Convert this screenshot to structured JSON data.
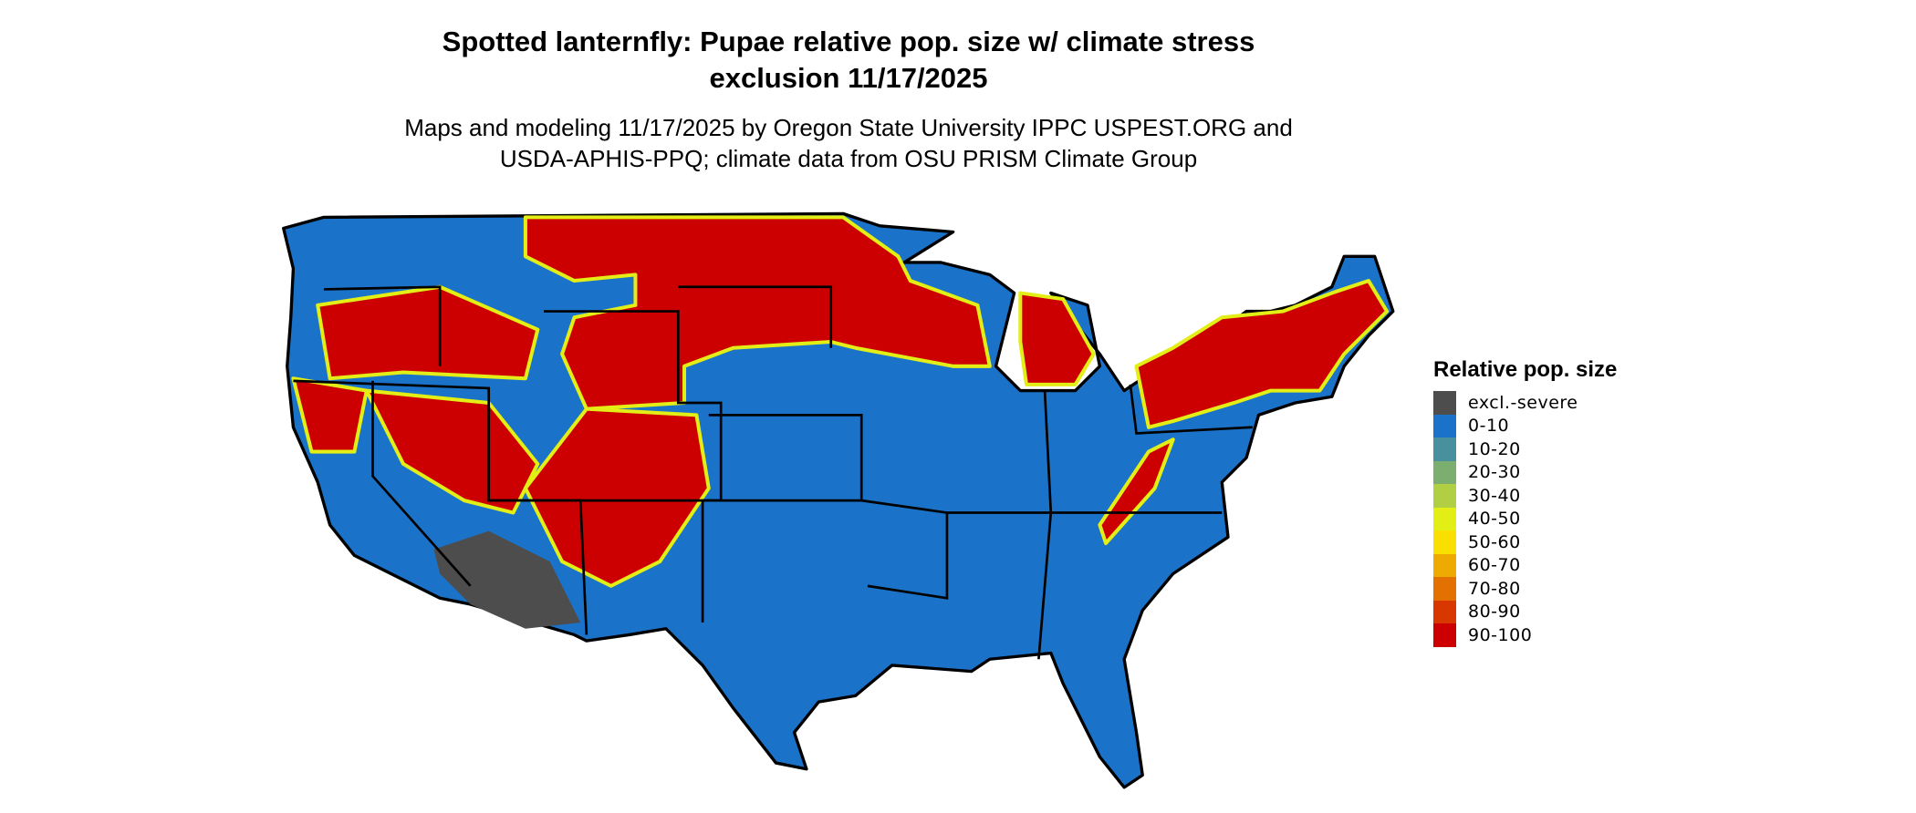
{
  "title_line1": "Spotted lanternfly: Pupae relative pop. size w/ climate stress",
  "title_line2": "exclusion 11/17/2025",
  "subtitle_line1": "Maps and modeling 11/17/2025 by Oregon State University IPPC USPEST.ORG and",
  "subtitle_line2": "USDA-APHIS-PPQ; climate data from OSU PRISM Climate Group",
  "map": {
    "region": "Contiguous United States",
    "colors": {
      "background_class": "#1a73c9",
      "border": "#000000"
    }
  },
  "legend": {
    "title": "Relative pop. size",
    "items": [
      {
        "label": "excl.-severe",
        "color": "#4d4d4d"
      },
      {
        "label": "0-10",
        "color": "#1a73c9"
      },
      {
        "label": "10-20",
        "color": "#4a8f9d"
      },
      {
        "label": "20-30",
        "color": "#7cae6f"
      },
      {
        "label": "30-40",
        "color": "#b0cf44"
      },
      {
        "label": "40-50",
        "color": "#e2ee15"
      },
      {
        "label": "50-60",
        "color": "#f9e000"
      },
      {
        "label": "60-70",
        "color": "#eeaa00"
      },
      {
        "label": "70-80",
        "color": "#e27100"
      },
      {
        "label": "80-90",
        "color": "#d93700"
      },
      {
        "label": "90-100",
        "color": "#cc0000"
      }
    ]
  }
}
